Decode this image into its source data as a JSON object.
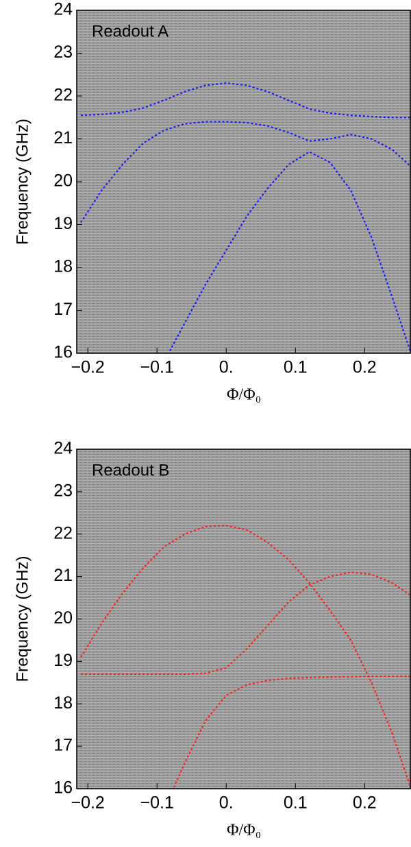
{
  "chart_data": [
    {
      "type": "line",
      "annotation": "Readout A",
      "annotation_color": "#1a1aff",
      "xlabel": "Φ/Φ₀",
      "ylabel": "Frequency (GHz)",
      "xlim": [
        -0.216,
        0.267
      ],
      "ylim": [
        16,
        24
      ],
      "xticks": [
        {
          "value": -0.2,
          "label": "−0.2"
        },
        {
          "value": -0.1,
          "label": "−0.1"
        },
        {
          "value": 0,
          "label": "0."
        },
        0.1,
        0.2
      ],
      "yticks": [
        16,
        17,
        18,
        19,
        20,
        21,
        22,
        23,
        24
      ],
      "x": [
        -0.21,
        -0.18,
        -0.15,
        -0.12,
        -0.09,
        -0.06,
        -0.03,
        0,
        0.03,
        0.06,
        0.09,
        0.12,
        0.15,
        0.18,
        0.21,
        0.24,
        0.267
      ],
      "series": [
        {
          "color": "#1a1aff",
          "values": [
            21.55,
            21.57,
            21.62,
            21.72,
            21.9,
            22.1,
            22.25,
            22.3,
            22.25,
            22.1,
            21.9,
            21.7,
            21.6,
            21.55,
            21.52,
            21.5,
            21.5
          ]
        },
        {
          "color": "#1a1aff",
          "values": [
            19.05,
            19.8,
            20.4,
            20.9,
            21.2,
            21.35,
            21.4,
            21.4,
            21.38,
            21.3,
            21.15,
            20.95,
            21.0,
            21.1,
            21.0,
            20.75,
            20.35
          ]
        },
        {
          "color": "#1a1aff",
          "values": [
            null,
            null,
            null,
            null,
            15.8,
            16.7,
            17.6,
            18.4,
            19.2,
            19.85,
            20.4,
            20.7,
            20.45,
            19.8,
            18.7,
            17.3,
            16.0
          ]
        }
      ]
    },
    {
      "type": "line",
      "annotation": "Readout B",
      "annotation_color": "#ff2020",
      "xlabel": "Φ/Φ₀",
      "ylabel": "Frequency (GHz)",
      "xlim": [
        -0.216,
        0.267
      ],
      "ylim": [
        16,
        24
      ],
      "xticks": [
        {
          "value": -0.2,
          "label": "−0.2"
        },
        {
          "value": -0.1,
          "label": "−0.1"
        },
        {
          "value": 0,
          "label": "0."
        },
        0.1,
        0.2
      ],
      "yticks": [
        16,
        17,
        18,
        19,
        20,
        21,
        22,
        23,
        24
      ],
      "x": [
        -0.21,
        -0.18,
        -0.15,
        -0.12,
        -0.09,
        -0.06,
        -0.03,
        0,
        0.03,
        0.06,
        0.09,
        0.12,
        0.15,
        0.18,
        0.21,
        0.24,
        0.267
      ],
      "series": [
        {
          "color": "#ff2020",
          "values": [
            19.1,
            19.9,
            20.6,
            21.2,
            21.7,
            22.0,
            22.18,
            22.2,
            22.1,
            21.8,
            21.4,
            20.85,
            20.2,
            19.5,
            18.5,
            17.3,
            16.0
          ]
        },
        {
          "color": "#ff2020",
          "values": [
            18.7,
            18.7,
            18.7,
            18.7,
            18.7,
            18.7,
            18.72,
            18.85,
            19.3,
            19.85,
            20.4,
            20.8,
            21.0,
            21.1,
            21.05,
            20.85,
            20.55
          ]
        },
        {
          "color": "#ff2020",
          "values": [
            null,
            null,
            null,
            null,
            15.5,
            16.6,
            17.6,
            18.2,
            18.45,
            18.55,
            18.6,
            18.62,
            18.63,
            18.64,
            18.65,
            18.65,
            18.65
          ]
        }
      ]
    }
  ]
}
